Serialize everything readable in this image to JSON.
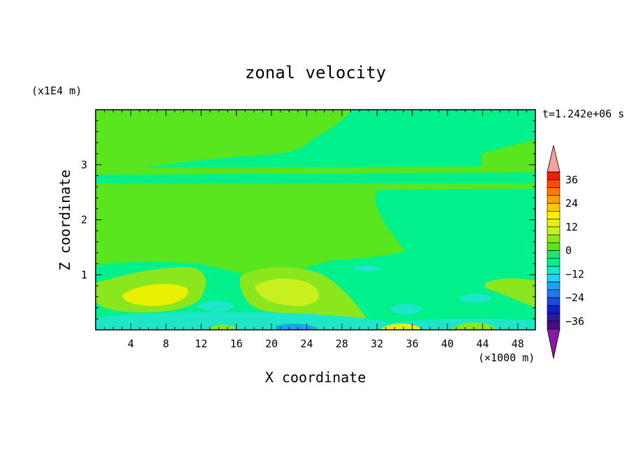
{
  "chart_data": {
    "type": "heatmap",
    "title": "zonal velocity",
    "xlabel": "X coordinate",
    "ylabel": "Z coordinate",
    "x_unit": "(×1000 m)",
    "y_unit": "(x1E4 m)",
    "time_label": "t=1.242e+06 s",
    "xlim": [
      0,
      50
    ],
    "ylim": [
      0,
      4
    ],
    "x_ticks": [
      "4",
      "8",
      "12",
      "16",
      "20",
      "24",
      "28",
      "32",
      "36",
      "40",
      "44",
      "48"
    ],
    "y_ticks": [
      "1",
      "2",
      "3"
    ],
    "colorbar": {
      "levels": [
        -40,
        -36,
        -32,
        -28,
        -24,
        -20,
        -16,
        -12,
        -8,
        -4,
        0,
        4,
        8,
        12,
        16,
        20,
        24,
        28,
        32,
        36,
        40
      ],
      "colors": [
        "#4b0a8c",
        "#2c1a9e",
        "#1020c8",
        "#1e46e6",
        "#1e78f0",
        "#1ea0f5",
        "#1ed2f5",
        "#1ee6c8",
        "#00f08c",
        "#1ee678",
        "#5ae61e",
        "#8ce61e",
        "#c8f01e",
        "#e6f000",
        "#fff000",
        "#ffc800",
        "#ffa000",
        "#ff7800",
        "#ff4b00",
        "#f01e00"
      ],
      "tick_labels": [
        "36",
        "24",
        "12",
        "0",
        "−12",
        "−24",
        "−36"
      ],
      "under_color": "#8c1aa0",
      "over_color": "#f5a0a0"
    },
    "regions": [
      {
        "name": "upper-green-band",
        "value": 2
      },
      {
        "name": "central-green-tongue",
        "value": 2
      },
      {
        "name": "middle-stripe",
        "value": 2
      },
      {
        "name": "left-lowlevel-jet",
        "value": 6
      },
      {
        "name": "left-jet-core",
        "value": 12
      },
      {
        "name": "center-lowlevel-jet",
        "value": 6
      },
      {
        "name": "center-jet-core",
        "value": 10
      },
      {
        "name": "near-surface-cyan",
        "value": -10
      },
      {
        "name": "near-surface-blue",
        "value": -20
      },
      {
        "name": "right-surface-yellow",
        "value": 14
      }
    ]
  }
}
